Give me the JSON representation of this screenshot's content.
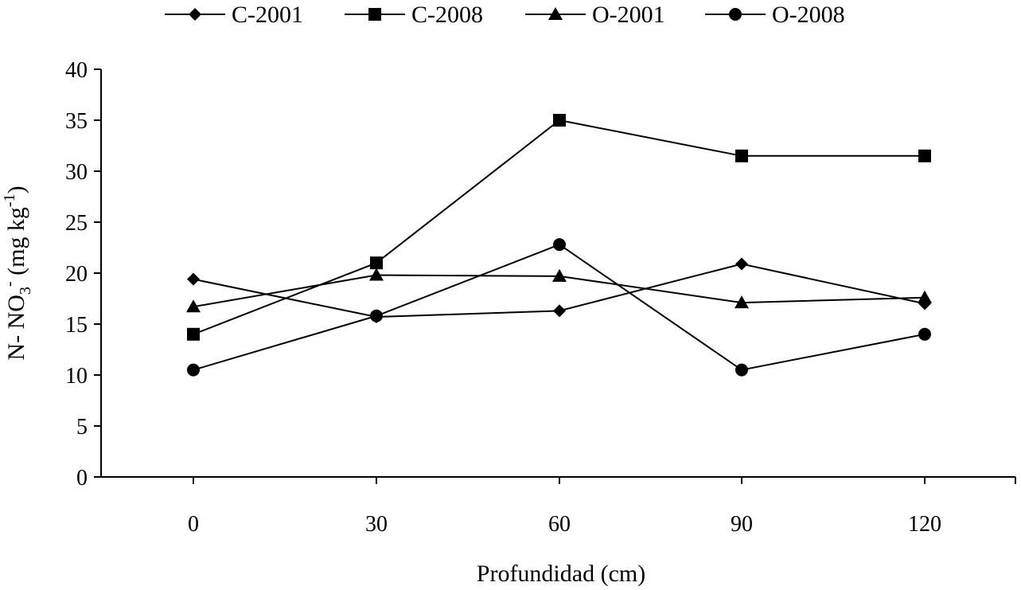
{
  "chart_data": {
    "type": "line",
    "title": "",
    "xlabel": "Profundidad (cm)",
    "ylabel": {
      "prefix": "N- NO",
      "sub": "3",
      "sup": "-",
      "units_prefix": " (mg kg",
      "units_sup": "-1",
      "units_suffix": ")"
    },
    "x": [
      0,
      30,
      60,
      90,
      120
    ],
    "x_tick_labels": [
      "0",
      "30",
      "60",
      "90",
      "120"
    ],
    "ylim": [
      0,
      40
    ],
    "y_ticks": [
      0,
      5,
      10,
      15,
      20,
      25,
      30,
      35,
      40
    ],
    "y_tick_labels": [
      "0",
      "5",
      "10",
      "15",
      "20",
      "25",
      "30",
      "35",
      "40"
    ],
    "grid": false,
    "legend_position": "top",
    "series": [
      {
        "name": "C-2001",
        "marker": "diamond",
        "values": [
          19.4,
          15.7,
          16.3,
          20.9,
          17.0
        ]
      },
      {
        "name": "C-2008",
        "marker": "square",
        "values": [
          14.0,
          21.0,
          35.0,
          31.5,
          31.5
        ]
      },
      {
        "name": "O-2001",
        "marker": "triangle",
        "values": [
          16.7,
          19.8,
          19.7,
          17.1,
          17.6
        ]
      },
      {
        "name": "O-2008",
        "marker": "circle",
        "values": [
          10.5,
          15.8,
          22.8,
          10.5,
          14.0
        ]
      }
    ]
  }
}
